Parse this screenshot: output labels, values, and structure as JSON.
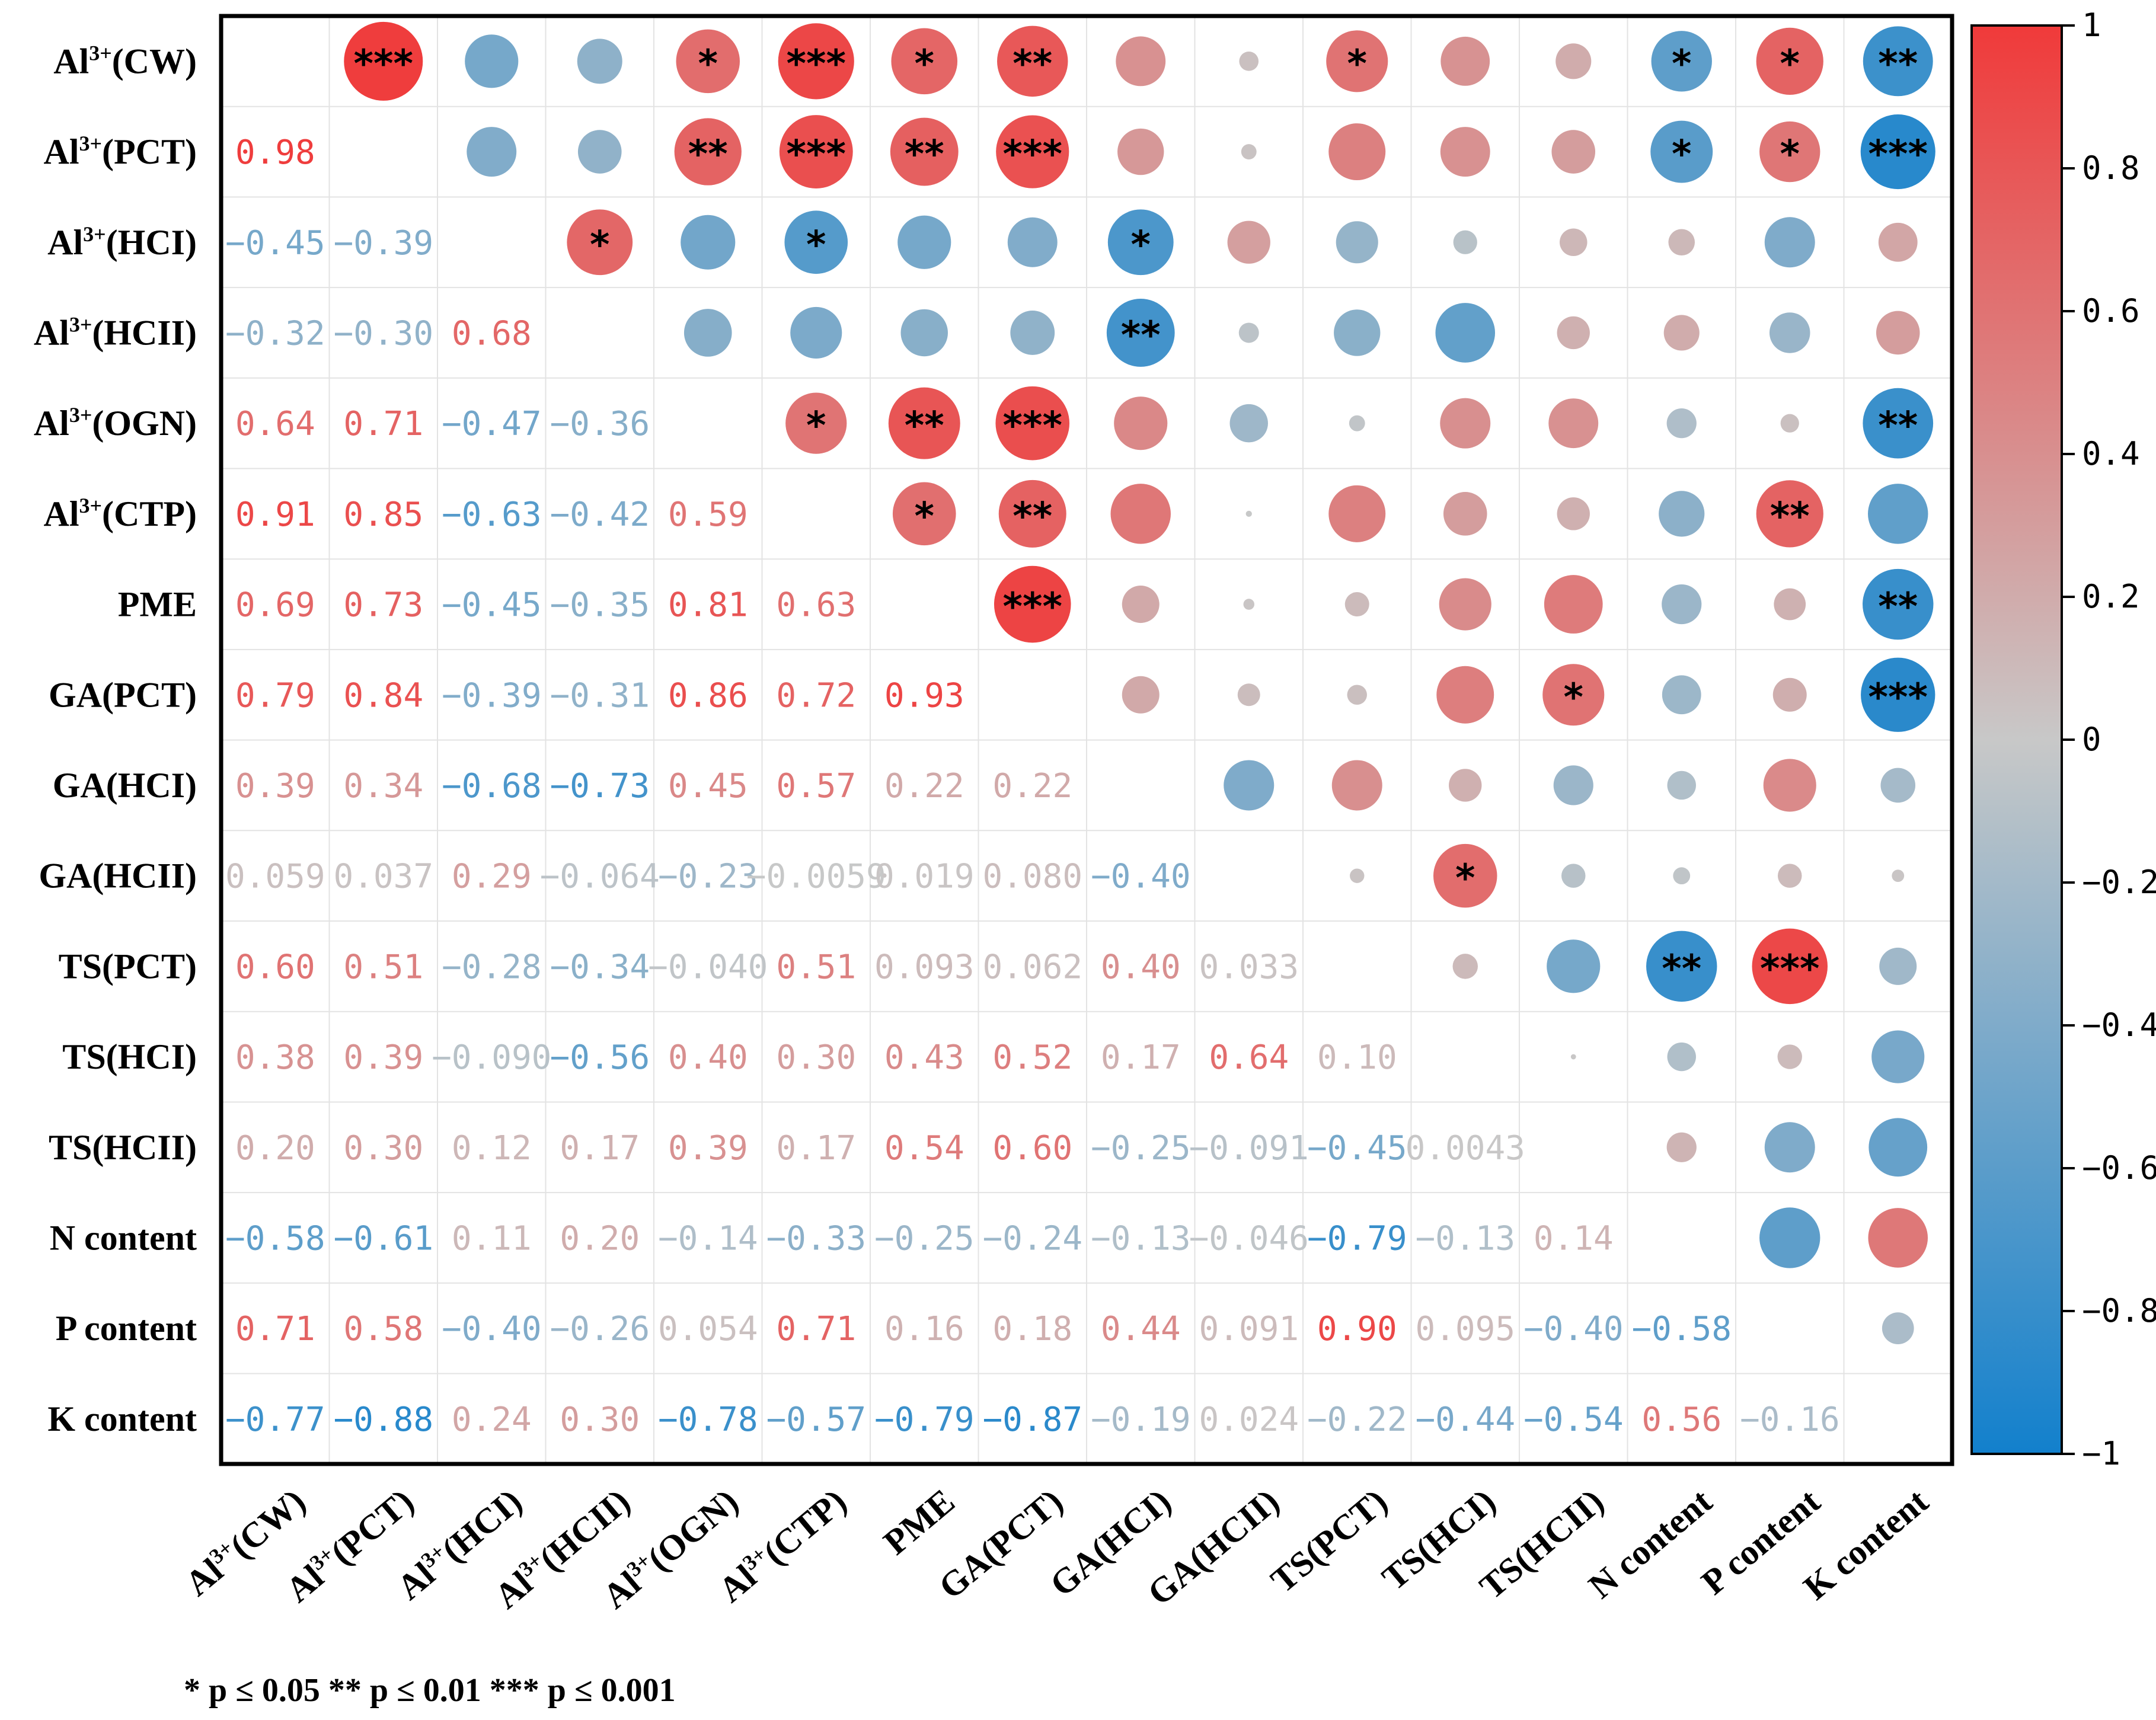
{
  "chart_data": {
    "type": "correlation-matrix",
    "variables": [
      "Al3+(CW)",
      "Al3+(PCT)",
      "Al3+(HCI)",
      "Al3+(HCII)",
      "Al3+(OGN)",
      "Al3+(CTP)",
      "PME",
      "GA(PCT)",
      "GA(HCI)",
      "GA(HCII)",
      "TS(PCT)",
      "TS(HCI)",
      "TS(HCII)",
      "N content",
      "P content",
      "K content"
    ],
    "lower_labels": [
      [],
      [
        "0.98"
      ],
      [
        "−0.45",
        "−0.39"
      ],
      [
        "−0.32",
        "−0.30",
        "0.68"
      ],
      [
        "0.64",
        "0.71",
        "−0.47",
        "−0.36"
      ],
      [
        "0.91",
        "0.85",
        "−0.63",
        "−0.42",
        "0.59"
      ],
      [
        "0.69",
        "0.73",
        "−0.45",
        "−0.35",
        "0.81",
        "0.63"
      ],
      [
        "0.79",
        "0.84",
        "−0.39",
        "−0.31",
        "0.86",
        "0.72",
        "0.93"
      ],
      [
        "0.39",
        "0.34",
        "−0.68",
        "−0.73",
        "0.45",
        "0.57",
        "0.22",
        "0.22"
      ],
      [
        "0.059",
        "0.037",
        "0.29",
        "−0.064",
        "−0.23",
        "−0.0059",
        "0.019",
        "0.080",
        "−0.40"
      ],
      [
        "0.60",
        "0.51",
        "−0.28",
        "−0.34",
        "−0.040",
        "0.51",
        "0.093",
        "0.062",
        "0.40",
        "0.033"
      ],
      [
        "0.38",
        "0.39",
        "−0.090",
        "−0.56",
        "0.40",
        "0.30",
        "0.43",
        "0.52",
        "0.17",
        "0.64",
        "0.10"
      ],
      [
        "0.20",
        "0.30",
        "0.12",
        "0.17",
        "0.39",
        "0.17",
        "0.54",
        "0.60",
        "−0.25",
        "−0.091",
        "−0.45",
        "0.0043"
      ],
      [
        "−0.58",
        "−0.61",
        "0.11",
        "0.20",
        "−0.14",
        "−0.33",
        "−0.25",
        "−0.24",
        "−0.13",
        "−0.046",
        "−0.79",
        "−0.13",
        "0.14"
      ],
      [
        "0.71",
        "0.58",
        "−0.40",
        "−0.26",
        "0.054",
        "0.71",
        "0.16",
        "0.18",
        "0.44",
        "0.091",
        "0.90",
        "0.095",
        "−0.40",
        "−0.58"
      ],
      [
        "−0.77",
        "−0.88",
        "0.24",
        "0.30",
        "−0.78",
        "−0.57",
        "−0.79",
        "−0.87",
        "−0.19",
        "0.024",
        "−0.22",
        "−0.44",
        "−0.54",
        "0.56",
        "−0.16"
      ]
    ],
    "significance": [
      [
        "",
        "***",
        "",
        "",
        "*",
        "***",
        "*",
        "**",
        "",
        "",
        "*",
        "",
        "",
        "*",
        "*",
        "**"
      ],
      [
        "",
        "",
        "",
        "",
        "**",
        "***",
        "**",
        "***",
        "",
        "",
        "",
        "",
        "",
        "*",
        "*",
        "***"
      ],
      [
        "",
        "",
        "",
        "*",
        "",
        "*",
        "",
        "",
        "*",
        "",
        "",
        "",
        "",
        "",
        "",
        ""
      ],
      [
        "",
        "",
        "",
        "",
        "",
        "",
        "",
        "",
        "**",
        "",
        "",
        "",
        "",
        "",
        "",
        ""
      ],
      [
        "",
        "",
        "",
        "",
        "",
        "*",
        "**",
        "***",
        "",
        "",
        "",
        "",
        "",
        "",
        "",
        "**"
      ],
      [
        "",
        "",
        "",
        "",
        "",
        "",
        "*",
        "**",
        "",
        "",
        "",
        "",
        "",
        "",
        "**",
        ""
      ],
      [
        "",
        "",
        "",
        "",
        "",
        "",
        "",
        "***",
        "",
        "",
        "",
        "",
        "",
        "",
        "",
        "**"
      ],
      [
        "",
        "",
        "",
        "",
        "",
        "",
        "",
        "",
        "",
        "",
        "",
        "",
        "*",
        "",
        "",
        "***"
      ],
      [
        "",
        "",
        "",
        "",
        "",
        "",
        "",
        "",
        "",
        "",
        "",
        "",
        "",
        "",
        "",
        ""
      ],
      [
        "",
        "",
        "",
        "",
        "",
        "",
        "",
        "",
        "",
        "",
        "",
        "*",
        "",
        "",
        "",
        ""
      ],
      [
        "",
        "",
        "",
        "",
        "",
        "",
        "",
        "",
        "",
        "",
        "",
        "",
        "",
        "**",
        "***",
        ""
      ],
      [
        "",
        "",
        "",
        "",
        "",
        "",
        "",
        "",
        "",
        "",
        "",
        "",
        "",
        "",
        "",
        ""
      ],
      [
        "",
        "",
        "",
        "",
        "",
        "",
        "",
        "",
        "",
        "",
        "",
        "",
        "",
        "",
        "",
        ""
      ],
      [
        "",
        "",
        "",
        "",
        "",
        "",
        "",
        "",
        "",
        "",
        "",
        "",
        "",
        "",
        "",
        ""
      ],
      [
        "",
        "",
        "",
        "",
        "",
        "",
        "",
        "",
        "",
        "",
        "",
        "",
        "",
        "",
        "",
        ""
      ],
      [
        "",
        "",
        "",
        "",
        "",
        "",
        "",
        "",
        "",
        "",
        "",
        "",
        "",
        "",
        "",
        ""
      ]
    ],
    "colorbar": {
      "range": [
        -1,
        1
      ],
      "ticks": [
        "1",
        "0.8",
        "0.6",
        "0.4",
        "0.2",
        "0",
        "−0.2",
        "−0.4",
        "−0.6",
        "−0.8",
        "−1"
      ],
      "colors": {
        "positive": "#f03a3a",
        "neutral": "#c8c8c8",
        "negative": "#1280cc"
      }
    },
    "legend_note": "* p ≤ 0.05  ** p ≤ 0.01  *** p ≤ 0.001"
  }
}
